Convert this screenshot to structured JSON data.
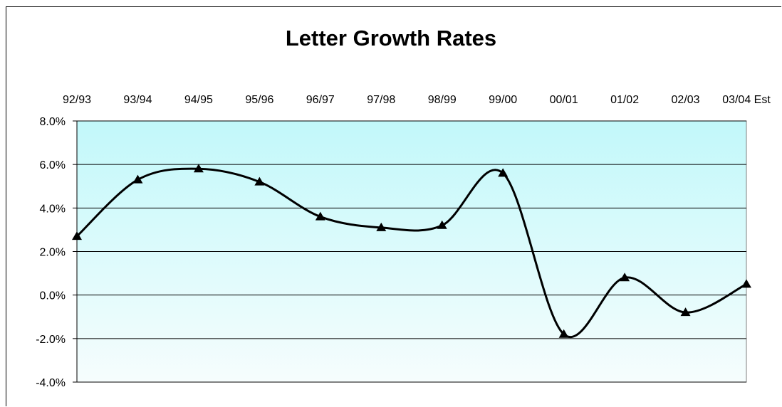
{
  "chart_data": {
    "type": "line",
    "title": "Letter Growth Rates",
    "xlabel": "",
    "ylabel": "",
    "categories": [
      "92/93",
      "93/94",
      "94/95",
      "95/96",
      "96/97",
      "97/98",
      "98/99",
      "99/00",
      "00/01",
      "01/02",
      "02/03",
      "03/04 Est"
    ],
    "series": [
      {
        "values": [
          2.7,
          5.3,
          5.8,
          5.2,
          3.6,
          3.1,
          3.2,
          5.6,
          -1.8,
          0.8,
          -0.8,
          0.5
        ]
      }
    ],
    "y_tick_labels": [
      "8.0%",
      "6.0%",
      "4.0%",
      "2.0%",
      "0.0%",
      "-2.0%",
      "-4.0%"
    ],
    "ylim": [
      -4,
      8
    ],
    "x_axis_position": "top",
    "grid": true,
    "marker": "triangle",
    "line_color": "#000000",
    "background_gradient": [
      "#c2f8fa",
      "#f6fdfd"
    ]
  }
}
